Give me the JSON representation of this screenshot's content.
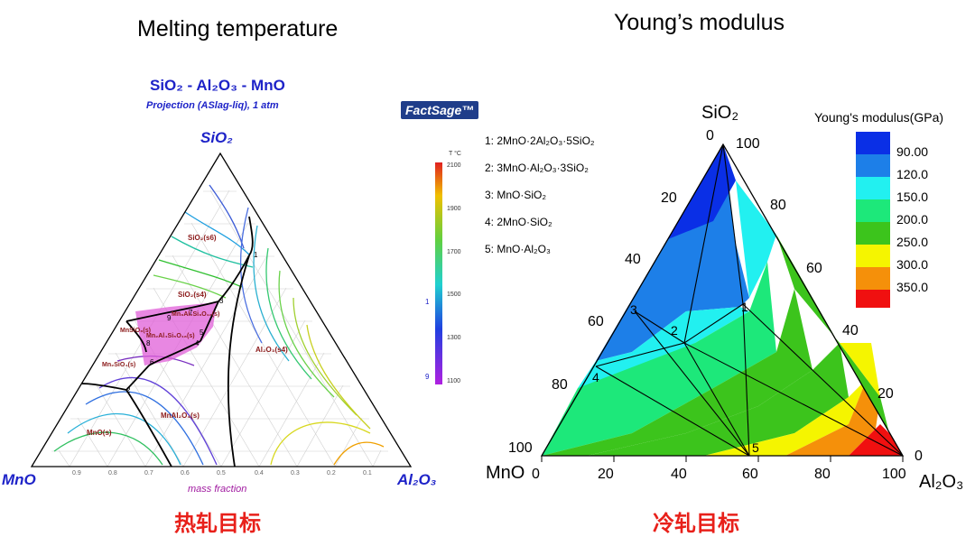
{
  "left_panel": {
    "title": "Melting temperature",
    "diagram_title": "SiO₂ - Al₂O₃ - MnO",
    "subtitle": "Projection (ASlag-liq),  1 atm",
    "logo": "FactSage™",
    "vertex_top": "SiO₂",
    "vertex_left": "MnO",
    "vertex_right": "Al₂O₃",
    "bottom_label": "mass fraction",
    "caption": "热轧目标",
    "colorbar": {
      "unit": "T °C",
      "ticks": [
        "2100",
        "1900",
        "1700",
        "1500",
        "1300",
        "1100"
      ],
      "marker_upper": "1",
      "marker_lower": "9"
    },
    "phase_labels": [
      "SiO₂(s6)",
      "SiO₂(s4)",
      "Mn₃Al₂Si₃O₁₂(s)",
      "MnSiO₃(s)",
      "Mn₂Al₄Si₅O₁₈(s)",
      "Mn₂SiO₄(s)",
      "Al₂O₃(s4)",
      "MnAl₂O₄(s)",
      "MnO(s)"
    ],
    "bottom_ticks": [
      "0.9",
      "0.8",
      "0.7",
      "0.6",
      "0.5",
      "0.4",
      "0.3",
      "0.2",
      "0.1"
    ],
    "point_labels": [
      "1",
      "2",
      "3",
      "4",
      "5",
      "6",
      "7",
      "8",
      "9"
    ],
    "colors": {
      "title_blue": "#1e23c8",
      "label_dark_red": "#8b1a1a",
      "magenta_region": "#e05fd8"
    }
  },
  "legend_list": [
    "1: 2MnO·2Al₂O₃·5SiO₂",
    "2: 3MnO·Al₂O₃·3SiO₂",
    "3: MnO·SiO₂",
    "4: 2MnO·SiO₂",
    "5: MnO·Al₂O₃"
  ],
  "right_panel": {
    "title": "Young’s modulus",
    "caption": "冷轧目标",
    "vertex_top": "SiO₂",
    "vertex_left": "MnO",
    "vertex_right": "Al₂O₃",
    "legend_title": "Young's modulus(GPa)",
    "legend_items": [
      {
        "label": "90.00",
        "color": "#0a2fe6"
      },
      {
        "label": "120.0",
        "color": "#1d7fe8"
      },
      {
        "label": "150.0",
        "color": "#22f0f0"
      },
      {
        "label": "200.0",
        "color": "#1de87a"
      },
      {
        "label": "250.0",
        "color": "#3cc41c"
      },
      {
        "label": "300.0",
        "color": "#f5f500"
      },
      {
        "label": "350.0",
        "color": "#f5900a"
      },
      {
        "label": "",
        "color": "#f01010"
      }
    ],
    "left_axis_ticks": [
      "0",
      "20",
      "40",
      "60",
      "80",
      "100"
    ],
    "right_axis_ticks": [
      "100",
      "80",
      "60",
      "40",
      "20",
      "0"
    ],
    "bottom_axis_ticks": [
      "0",
      "20",
      "40",
      "60",
      "80",
      "100"
    ],
    "point_labels": [
      "1",
      "2",
      "3",
      "4",
      "5"
    ]
  }
}
